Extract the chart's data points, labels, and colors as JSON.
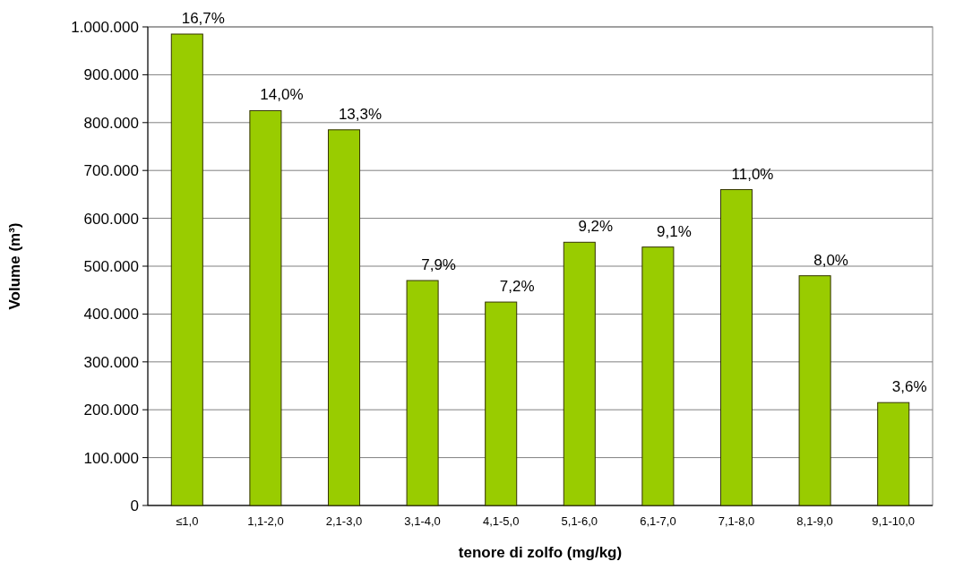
{
  "chart_data": {
    "type": "bar",
    "xlabel": "tenore di zolfo (mg/kg)",
    "ylabel": "Volume (m³)",
    "categories": [
      "≤1,0",
      "1,1-2,0",
      "2,1-3,0",
      "3,1-4,0",
      "4,1-5,0",
      "5,1-6,0",
      "6,1-7,0",
      "7,1-8,0",
      "8,1-9,0",
      "9,1-10,0"
    ],
    "values": [
      985000,
      825000,
      785000,
      470000,
      425000,
      550000,
      540000,
      660000,
      480000,
      215000
    ],
    "annotations": [
      {
        "text": "16,7%",
        "x": "≤1,0",
        "y": 985000
      },
      {
        "text": "14,0%",
        "x": "1,1-2,0",
        "y": 825000
      },
      {
        "text": "13,3%",
        "x": "2,1-3,0",
        "y": 785000
      },
      {
        "text": "7,9%",
        "x": "3,1-4,0",
        "y": 470000
      },
      {
        "text": "7,2%",
        "x": "4,1-5,0",
        "y": 425000
      },
      {
        "text": "9,2%",
        "x": "5,1-6,0",
        "y": 550000
      },
      {
        "text": "9,1%",
        "x": "6,1-7,0",
        "y": 540000
      },
      {
        "text": "11,0%",
        "x": "7,1-8,0",
        "y": 660000
      },
      {
        "text": "8,0%",
        "x": "8,1-9,0",
        "y": 480000
      },
      {
        "text": "3,6%",
        "x": "9,1-10,0",
        "y": 215000
      }
    ],
    "color": "#99cc00",
    "ylim": [
      0,
      1000000
    ],
    "yticks": [
      0,
      {
        "value": 100000,
        "label": "100.000"
      },
      {
        "value": 200000,
        "label": "200.000"
      },
      {
        "value": 300000,
        "label": "300.000"
      },
      {
        "value": 400000,
        "label": "400.000"
      },
      {
        "value": 500000,
        "label": "500.000"
      },
      {
        "value": 600000,
        "label": "600.000"
      },
      {
        "value": 700000,
        "label": "700.000"
      },
      {
        "value": 800000,
        "label": "800.000"
      },
      {
        "value": 900000,
        "label": "900.000"
      },
      {
        "value": 1000000,
        "label": "1.000.000"
      }
    ],
    "grid": true
  }
}
